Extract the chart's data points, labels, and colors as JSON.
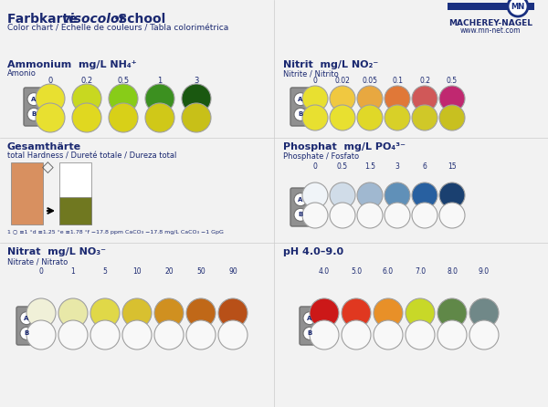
{
  "bg_color": "#f0f0f0",
  "title_line1": "Farbkarte ",
  "title_visocolor": "visocolor",
  "title_school": " School",
  "title_line2": "Color chart / Echelle de couleurs / Tabla colorimétrica",
  "mn_logo_text": "MN",
  "company_name": "MACHEREY-NAGEL",
  "company_url": "www.mn-net.com",
  "ammonium_title": "Ammonium  mg/L NH₄⁺",
  "ammonium_sub": "Amonio",
  "ammonium_ticks": [
    "0",
    "0.2",
    "0.5",
    "1",
    "3"
  ],
  "ammonium_A": [
    "#e8e030",
    "#c8d820",
    "#88cc18",
    "#3c9020",
    "#1a5810"
  ],
  "ammonium_B": [
    "#e8e030",
    "#e0d820",
    "#d8d018",
    "#d0c818",
    "#c8c018"
  ],
  "nitrit_title": "Nitrit  mg/L NO₂⁻",
  "nitrit_sub": "Nitrite / Nitrito",
  "nitrit_ticks": [
    "0",
    "0.02",
    "0.05",
    "0.1",
    "0.2",
    "0.5"
  ],
  "nitrit_A": [
    "#e8e030",
    "#f0c840",
    "#e8a840",
    "#e07838",
    "#d05858",
    "#c02870"
  ],
  "nitrit_B": [
    "#e8e030",
    "#e8e030",
    "#e0d828",
    "#d8d028",
    "#d0c828",
    "#c8c020"
  ],
  "gesamthaerte_title": "Gesamthärte",
  "gesamthaerte_sub": "total Hardness / Dureté totale / Dureza total",
  "gesamthaerte_note": "1 ○ ≡1 °d ≡1.25 °e ≡1.78 °f −17.8 ppm CaCO₃ −17.8 mg/L CaCO₃ −1 GpG",
  "gesamthaerte_soft_color": "#d89060",
  "gesamthaerte_hard_color": "#707820",
  "phosphat_title": "Phosphat  mg/L PO₄³⁻",
  "phosphat_sub": "Phosphate / Fosfato",
  "phosphat_ticks": [
    "0",
    "0.5",
    "1.5",
    "3",
    "6",
    "15"
  ],
  "phosphat_A": [
    "#f0f4f8",
    "#d0dce8",
    "#a0b8d0",
    "#6090b8",
    "#2860a0",
    "#1a4070"
  ],
  "phosphat_B": [
    "#f8f8f8",
    "#f0f0f0",
    "#e8e8e8",
    "#e0e0e0",
    "#d8d8d8",
    "#d0d0d0"
  ],
  "nitrat_title": "Nitrat  mg/L NO₃⁻",
  "nitrat_sub": "Nitrate / Nitrato",
  "nitrat_ticks": [
    "0",
    "1",
    "5",
    "10",
    "20",
    "50",
    "90"
  ],
  "nitrat_A": [
    "#f0f0d8",
    "#e8e8a8",
    "#e0d848",
    "#d8c030",
    "#d09020",
    "#c06818",
    "#b85018"
  ],
  "nitrat_B": [
    "#f8f8f8",
    "#f0f0f0",
    "#e8e8e8",
    "#e0e0e0",
    "#d8d8d8",
    "#d0d0d0",
    "#c8c8c8"
  ],
  "ph_title": "pH 4.0–9.0",
  "ph_ticks": [
    "4.0",
    "5.0",
    "6.0",
    "7.0",
    "8.0",
    "9.0"
  ],
  "ph_A": [
    "#cc1818",
    "#e03820",
    "#e89028",
    "#c8d828",
    "#608848",
    "#708888"
  ],
  "ph_B": [
    "#f8f8f8",
    "#f0f0f0",
    "#e8e8e8",
    "#e0e0e0",
    "#d8d8d8",
    "#d0d0d0"
  ],
  "dark_blue": "#1a2870",
  "gray_bg": "#b0b0b0"
}
